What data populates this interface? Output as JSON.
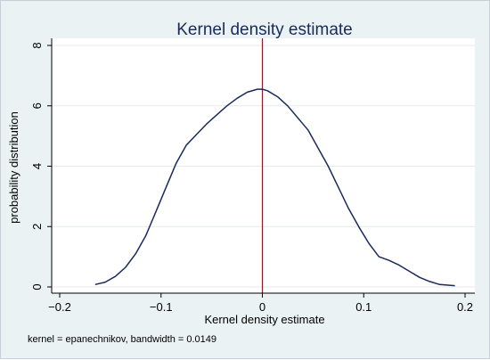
{
  "chart_data": {
    "type": "line",
    "title": "Kernel density estimate",
    "xlabel": "Kernel density estimate",
    "ylabel": "probability distribution",
    "note": "kernel = epanechnikov, bandwidth = 0.0149",
    "xlim": [
      -0.2,
      0.2
    ],
    "ylim": [
      0,
      8
    ],
    "x_ticks": [
      -0.2,
      -0.1,
      0,
      0.1,
      0.2
    ],
    "x_tick_labels": [
      "−0.2",
      "−0.1",
      "0",
      "0.1",
      "0.2"
    ],
    "y_ticks": [
      0,
      2,
      4,
      6,
      8
    ],
    "y_tick_labels": [
      "0",
      "2",
      "4",
      "6",
      "8"
    ],
    "reference_line_x": 0,
    "grid": true,
    "colors": {
      "plot_background": "#ffffff",
      "outer_background": "#eaf2f3",
      "line": "#1a2b5a",
      "reference_line": "#8b1c2c",
      "grid": "#e6eaed",
      "title": "#1a2b5a"
    },
    "series": [
      {
        "x": [
          -0.165,
          -0.155,
          -0.145,
          -0.135,
          -0.125,
          -0.115,
          -0.105,
          -0.095,
          -0.085,
          -0.075,
          -0.065,
          -0.055,
          -0.045,
          -0.035,
          -0.025,
          -0.015,
          -0.005,
          0.0,
          0.005,
          0.015,
          0.025,
          0.035,
          0.045,
          0.055,
          0.065,
          0.075,
          0.085,
          0.095,
          0.105,
          0.115,
          0.125,
          0.135,
          0.145,
          0.155,
          0.165,
          0.175,
          0.19
        ],
        "y": [
          0.08,
          0.16,
          0.35,
          0.65,
          1.1,
          1.7,
          2.5,
          3.3,
          4.1,
          4.7,
          5.05,
          5.4,
          5.7,
          6.0,
          6.25,
          6.45,
          6.55,
          6.55,
          6.5,
          6.3,
          6.0,
          5.6,
          5.2,
          4.6,
          4.0,
          3.3,
          2.6,
          2.0,
          1.45,
          1.0,
          0.88,
          0.72,
          0.52,
          0.32,
          0.18,
          0.08,
          0.04
        ]
      }
    ]
  }
}
